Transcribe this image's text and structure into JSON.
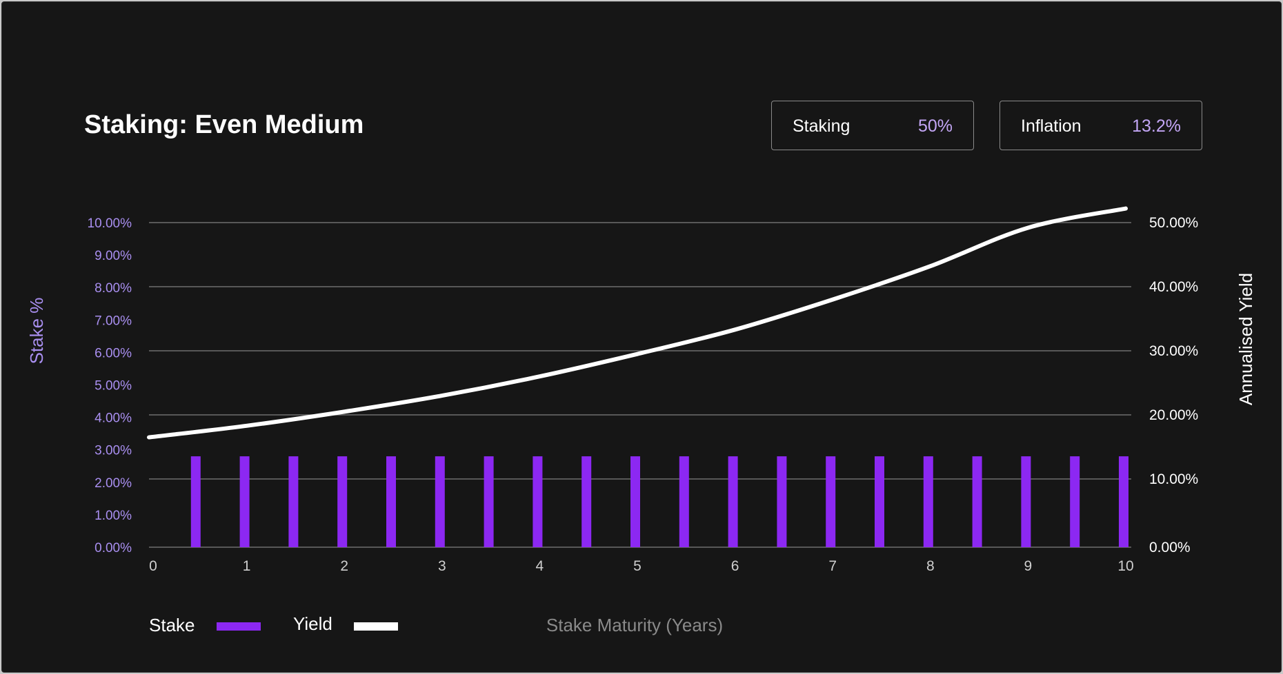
{
  "title": "Staking: Even Medium",
  "stats": [
    {
      "label": "Staking",
      "value": "50%"
    },
    {
      "label": "Inflation",
      "value": "13.2%"
    }
  ],
  "colors": {
    "background": "#161616",
    "accent": "#8c28f2",
    "accent_text": "#a98ff0",
    "stat_value": "#c3a6f5",
    "yield_line": "#ffffff",
    "grid": "#6e6e6e",
    "muted": "#8a8a8a"
  },
  "chart_data": {
    "type": "bar+line",
    "xlabel": "Stake Maturity (Years)",
    "x_ticks": [
      0,
      1,
      2,
      3,
      4,
      5,
      6,
      7,
      8,
      9,
      10
    ],
    "xlim": [
      0,
      10
    ],
    "y_left": {
      "label": "Stake %",
      "ticks": [
        "0.00%",
        "1.00%",
        "2.00%",
        "3.00%",
        "4.00%",
        "5.00%",
        "6.00%",
        "7.00%",
        "8.00%",
        "9.00%",
        "10.00%"
      ],
      "range": [
        0,
        10
      ]
    },
    "y_right": {
      "label": "Annualised Yield",
      "ticks": [
        "0.00%",
        "10.00%",
        "20.00%",
        "30.00%",
        "40.00%",
        "50.00%"
      ],
      "range": [
        0,
        50
      ]
    },
    "grid": true,
    "legend_position": "bottom-left",
    "series": [
      {
        "name": "Stake",
        "type": "bar",
        "axis": "left",
        "x": [
          0.5,
          1.0,
          1.5,
          2.0,
          2.5,
          3.0,
          3.5,
          4.0,
          4.5,
          5.0,
          5.5,
          6.0,
          6.5,
          7.0,
          7.5,
          8.0,
          8.5,
          9.0,
          9.5,
          10.0
        ],
        "values": [
          2.8,
          2.8,
          2.8,
          2.8,
          2.8,
          2.8,
          2.8,
          2.8,
          2.8,
          2.8,
          2.8,
          2.8,
          2.8,
          2.8,
          2.8,
          2.8,
          2.8,
          2.8,
          2.8,
          2.8
        ]
      },
      {
        "name": "Yield",
        "type": "line",
        "axis": "right",
        "x": [
          0,
          1,
          2,
          3,
          4,
          5,
          6,
          7,
          8,
          9,
          10
        ],
        "values": [
          16.5,
          18.3,
          20.5,
          23.0,
          26.0,
          29.5,
          33.3,
          38.0,
          43.2,
          49.2,
          52.2
        ]
      }
    ]
  }
}
